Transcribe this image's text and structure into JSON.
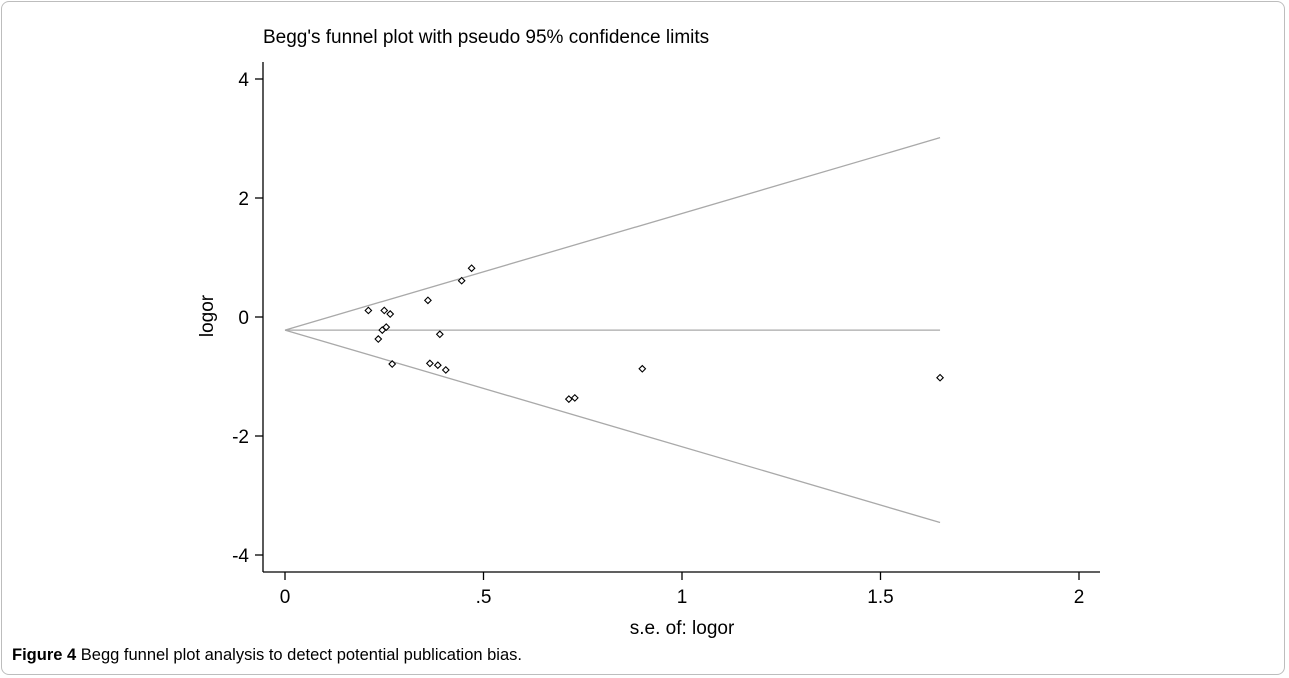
{
  "chart_data": {
    "type": "scatter",
    "title": "Begg's funnel plot with pseudo 95% confidence limits",
    "xlabel": "s.e. of: logor",
    "ylabel": "logor",
    "xlim": [
      0,
      2
    ],
    "ylim": [
      -4,
      4
    ],
    "x_ticks": [
      0,
      0.5,
      1,
      1.5,
      2
    ],
    "x_tick_labels": [
      "0",
      ".5",
      "1",
      "1.5",
      "2"
    ],
    "y_ticks": [
      4,
      2,
      0,
      -2,
      -4
    ],
    "y_tick_labels": [
      "4",
      "2",
      "0",
      "-2",
      "-4"
    ],
    "pooled_estimate": -0.22,
    "funnel_xmax": 1.65,
    "points": [
      {
        "x": 0.21,
        "y": 0.11
      },
      {
        "x": 0.235,
        "y": -0.37
      },
      {
        "x": 0.245,
        "y": -0.22
      },
      {
        "x": 0.25,
        "y": 0.11
      },
      {
        "x": 0.255,
        "y": -0.17
      },
      {
        "x": 0.265,
        "y": 0.05
      },
      {
        "x": 0.27,
        "y": -0.79
      },
      {
        "x": 0.36,
        "y": 0.28
      },
      {
        "x": 0.365,
        "y": -0.78
      },
      {
        "x": 0.385,
        "y": -0.81
      },
      {
        "x": 0.39,
        "y": -0.29
      },
      {
        "x": 0.405,
        "y": -0.89
      },
      {
        "x": 0.445,
        "y": 0.61
      },
      {
        "x": 0.47,
        "y": 0.82
      },
      {
        "x": 0.715,
        "y": -1.38
      },
      {
        "x": 0.73,
        "y": -1.36
      },
      {
        "x": 0.9,
        "y": -0.87
      },
      {
        "x": 1.65,
        "y": -1.02
      }
    ]
  },
  "caption": {
    "label": "Figure 4",
    "text": " Begg funnel plot analysis to detect potential publication bias."
  }
}
